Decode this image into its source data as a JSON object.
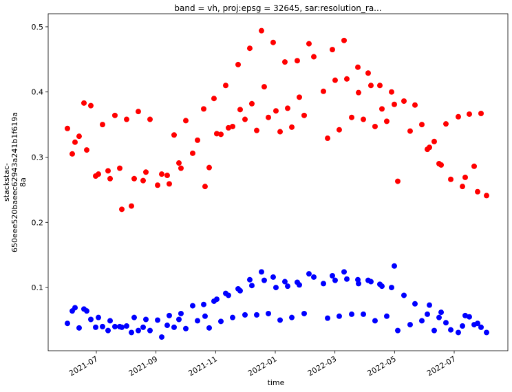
{
  "chart_data": {
    "type": "scatter",
    "title": "band = vh, proj:epsg = 32645, sar:resolution_ra...",
    "xlabel": "time",
    "ylabel": [
      "stackstac-",
      "650eee520baeec62943a241b1f619a",
      "8a"
    ],
    "x": [
      2021.4192,
      2021.4327,
      2021.4404,
      2021.4519,
      2021.4654,
      2021.4731,
      2021.4846,
      2021.4981,
      2021.5058,
      2021.5173,
      2021.5327,
      2021.5385,
      2021.5519,
      2021.5654,
      2021.5712,
      2021.5846,
      2021.5981,
      2021.6058,
      2021.6173,
      2021.6308,
      2021.6385,
      2021.65,
      2021.6712,
      2021.6827,
      2021.6981,
      2021.7038,
      2021.7173,
      2021.7308,
      2021.7365,
      2021.75,
      2021.7692,
      2021.7827,
      2021.8,
      2021.8038,
      2021.8154,
      2021.8288,
      2021.8365,
      2021.8481,
      2021.8615,
      2021.8692,
      2021.8808,
      2021.8962,
      2021.9019,
      2021.9154,
      2021.9288,
      2021.9346,
      2021.9481,
      2021.9615,
      2021.9692,
      2021.9808,
      2021.9942,
      2022.0019,
      2022.0135,
      2022.0269,
      2022.0346,
      2022.0462,
      2022.0615,
      2022.0673,
      2022.0808,
      2022.0942,
      2022.1077,
      2022.1346,
      2022.1462,
      2022.1596,
      2022.1673,
      2022.1788,
      2022.1923,
      2022.2,
      2022.2135,
      2022.2308,
      2022.2327,
      2022.2462,
      2022.2596,
      2022.2673,
      2022.2788,
      2022.2923,
      2022.2981,
      2022.3115,
      2022.325,
      2022.3327,
      2022.3423,
      2022.3596,
      2022.3769,
      2022.3904,
      2022.4096,
      2022.425,
      2022.4308,
      2022.4442,
      2022.4577,
      2022.4635,
      2022.4769,
      2022.4904,
      2022.5115,
      2022.5231,
      2022.5308,
      2022.5423,
      2022.5558,
      2022.5654,
      2022.575,
      2022.5904
    ],
    "series": [
      {
        "color": "#ff0000",
        "values": [
          0.344,
          0.305,
          0.323,
          0.332,
          0.383,
          0.311,
          0.379,
          0.271,
          0.274,
          0.35,
          0.279,
          0.267,
          0.364,
          0.283,
          0.22,
          0.358,
          0.225,
          0.267,
          0.37,
          0.264,
          0.277,
          0.358,
          0.257,
          0.274,
          0.272,
          0.259,
          0.334,
          0.291,
          0.283,
          0.356,
          0.306,
          0.326,
          0.374,
          0.255,
          0.284,
          0.39,
          0.336,
          0.335,
          0.41,
          0.345,
          0.347,
          0.442,
          0.373,
          0.358,
          0.467,
          0.382,
          0.341,
          0.494,
          0.408,
          0.361,
          0.476,
          0.371,
          0.339,
          0.446,
          0.375,
          0.346,
          0.448,
          0.392,
          0.364,
          0.474,
          0.454,
          0.401,
          0.329,
          0.465,
          0.418,
          0.342,
          0.479,
          0.42,
          0.361,
          0.438,
          0.399,
          0.358,
          0.429,
          0.41,
          0.347,
          0.41,
          0.374,
          0.355,
          0.4,
          0.381,
          0.263,
          0.386,
          0.34,
          0.38,
          0.35,
          0.312,
          0.315,
          0.324,
          0.29,
          0.288,
          0.351,
          0.266,
          0.362,
          0.255,
          0.269,
          0.366,
          0.286,
          0.247,
          0.367,
          0.241
        ]
      },
      {
        "color": "#0000ff",
        "values": [
          0.045,
          0.064,
          0.069,
          0.038,
          0.067,
          0.064,
          0.051,
          0.039,
          0.054,
          0.04,
          0.034,
          0.049,
          0.04,
          0.04,
          0.039,
          0.041,
          0.031,
          0.054,
          0.034,
          0.039,
          0.051,
          0.034,
          0.05,
          0.024,
          0.042,
          0.057,
          0.039,
          0.051,
          0.06,
          0.037,
          0.072,
          0.049,
          0.074,
          0.056,
          0.038,
          0.079,
          0.082,
          0.048,
          0.091,
          0.088,
          0.054,
          0.098,
          0.095,
          0.058,
          0.112,
          0.103,
          0.058,
          0.124,
          0.111,
          0.06,
          0.116,
          0.1,
          0.05,
          0.109,
          0.102,
          0.054,
          0.108,
          0.104,
          0.06,
          0.121,
          0.116,
          0.106,
          0.053,
          0.118,
          0.111,
          0.056,
          0.124,
          0.113,
          0.059,
          0.112,
          0.106,
          0.059,
          0.111,
          0.109,
          0.049,
          0.105,
          0.102,
          0.056,
          0.1,
          0.133,
          0.034,
          0.088,
          0.043,
          0.075,
          0.049,
          0.059,
          0.073,
          0.034,
          0.054,
          0.062,
          0.046,
          0.035,
          0.031,
          0.041,
          0.057,
          0.055,
          0.043,
          0.045,
          0.039,
          0.031
        ]
      }
    ],
    "xlim": [
      2021.3654,
      2022.65
    ],
    "xticks": [
      {
        "value": 2021.5,
        "label": "2021-07"
      },
      {
        "value": 2021.6667,
        "label": "2021-09"
      },
      {
        "value": 2021.8333,
        "label": "2021-11"
      },
      {
        "value": 2022.0,
        "label": "2022-01"
      },
      {
        "value": 2022.1667,
        "label": "2022-03"
      },
      {
        "value": 2022.3333,
        "label": "2022-05"
      },
      {
        "value": 2022.5,
        "label": "2022-07"
      }
    ],
    "ylim": [
      0.003,
      0.52
    ],
    "yticks": [
      0.1,
      0.2,
      0.3,
      0.4,
      0.5
    ]
  }
}
